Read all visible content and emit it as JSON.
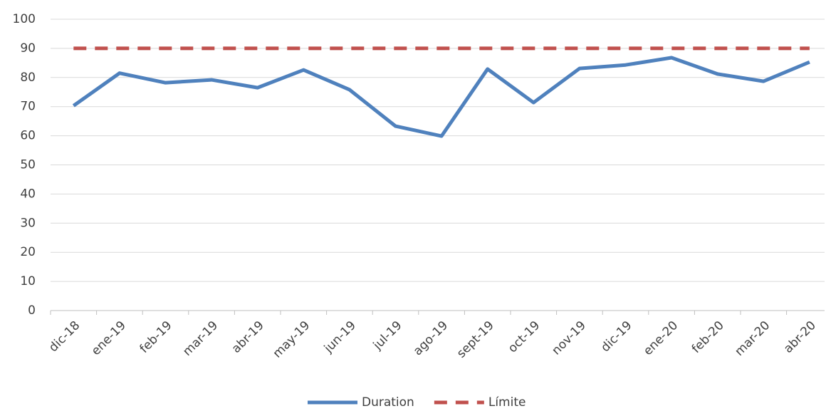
{
  "chart_data": {
    "type": "line",
    "categories": [
      "dic-18",
      "ene-19",
      "feb-19",
      "mar-19",
      "abr-19",
      "may-19",
      "jun-19",
      "jul-19",
      "ago-19",
      "sept-19",
      "oct-19",
      "nov-19",
      "dic-19",
      "ene-20",
      "feb-20",
      "mar-20",
      "abr-20"
    ],
    "series": [
      {
        "name": "Duration",
        "color": "#4f81bd",
        "dash": false,
        "values": [
          70.3,
          81.5,
          78.2,
          79.2,
          76.5,
          82.6,
          75.8,
          63.3,
          59.9,
          82.9,
          71.4,
          83.1,
          84.3,
          86.8,
          81.2,
          78.7,
          85.3
        ]
      },
      {
        "name": "Límite",
        "color": "#c0504d",
        "dash": true,
        "values": [
          90,
          90,
          90,
          90,
          90,
          90,
          90,
          90,
          90,
          90,
          90,
          90,
          90,
          90,
          90,
          90,
          90
        ]
      }
    ],
    "ylim": [
      0,
      100
    ],
    "yticks": [
      0,
      10,
      20,
      30,
      40,
      50,
      60,
      70,
      80,
      90,
      100
    ],
    "grid": true,
    "legend": "bottom"
  }
}
